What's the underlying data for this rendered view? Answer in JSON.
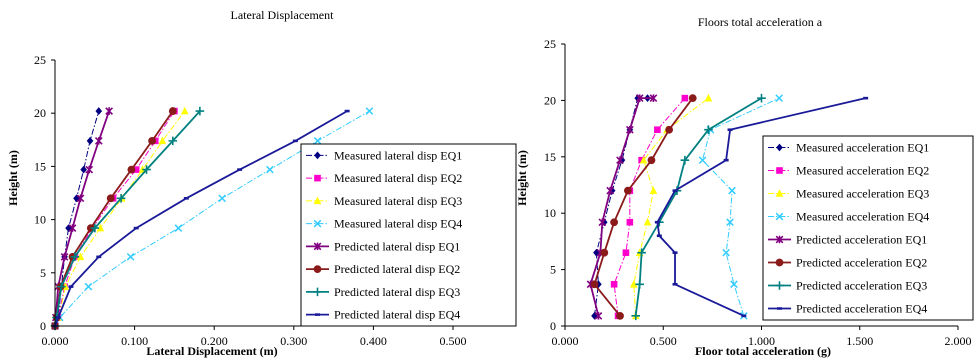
{
  "chart_data": [
    {
      "type": "line",
      "title": "Lateral Displacement",
      "xlabel": "Lateral Displacement (m)",
      "ylabel": "Height (m)",
      "xlim": [
        0,
        0.5
      ],
      "ylim": [
        0,
        25
      ],
      "xticks": [
        "0.000",
        "0.100",
        "0.200",
        "0.300",
        "0.400",
        "0.500"
      ],
      "yticks": [
        "0",
        "5",
        "10",
        "15",
        "20",
        "25"
      ],
      "grid": false,
      "legend_position": "right",
      "series": [
        {
          "name": "Measured lateral disp EQ1",
          "color": "#000080",
          "marker": "diamond",
          "dash": "dashdot",
          "x": [
            0.0,
            0.004,
            0.008,
            0.012,
            0.017,
            0.027,
            0.036,
            0.044,
            0.055
          ],
          "y": [
            0,
            0.8,
            3.7,
            6.5,
            9.2,
            12.0,
            14.7,
            17.4,
            20.2
          ]
        },
        {
          "name": "Measured lateral disp EQ2",
          "color": "#ff00cc",
          "marker": "square",
          "dash": "dashdot",
          "x": [
            0.0,
            0.004,
            0.012,
            0.025,
            0.047,
            0.073,
            0.102,
            0.126,
            0.15
          ],
          "y": [
            0,
            0.8,
            3.7,
            6.5,
            9.2,
            12.0,
            14.7,
            17.4,
            20.2
          ]
        },
        {
          "name": "Measured lateral disp EQ3",
          "color": "#ffff00",
          "marker": "triangle",
          "dash": "dashdot",
          "x": [
            0.0,
            0.005,
            0.013,
            0.032,
            0.057,
            0.084,
            0.11,
            0.135,
            0.163
          ],
          "y": [
            0,
            0.8,
            3.7,
            6.5,
            9.2,
            12.0,
            14.7,
            17.4,
            20.2
          ]
        },
        {
          "name": "Measured lateral disp EQ4",
          "color": "#33ccff",
          "marker": "x",
          "dash": "dashdot",
          "x": [
            0.0,
            0.006,
            0.042,
            0.095,
            0.155,
            0.21,
            0.27,
            0.33,
            0.395
          ],
          "y": [
            0,
            0.8,
            3.7,
            6.5,
            9.2,
            12.0,
            14.7,
            17.4,
            20.2
          ]
        },
        {
          "name": "Predicted lateral disp EQ1",
          "color": "#800080",
          "marker": "star",
          "dash": "solid",
          "x": [
            0.0,
            0.001,
            0.004,
            0.012,
            0.022,
            0.032,
            0.043,
            0.055,
            0.068
          ],
          "y": [
            0,
            0.8,
            3.7,
            6.5,
            9.2,
            12.0,
            14.7,
            17.4,
            20.2
          ]
        },
        {
          "name": "Predicted lateral disp EQ2",
          "color": "#8b1a1a",
          "marker": "circle",
          "dash": "solid",
          "x": [
            0.0,
            0.002,
            0.007,
            0.022,
            0.045,
            0.07,
            0.096,
            0.122,
            0.148
          ],
          "y": [
            0,
            0.8,
            3.7,
            6.5,
            9.2,
            12.0,
            14.7,
            17.4,
            20.2
          ]
        },
        {
          "name": "Predicted lateral disp EQ3",
          "color": "#008080",
          "marker": "plus",
          "dash": "solid",
          "x": [
            0.0,
            0.002,
            0.008,
            0.025,
            0.05,
            0.083,
            0.115,
            0.148,
            0.182
          ],
          "y": [
            0,
            0.8,
            3.7,
            6.5,
            9.2,
            12.0,
            14.7,
            17.4,
            20.2
          ]
        },
        {
          "name": "Predicted lateral disp EQ4",
          "color": "#1a1a99",
          "marker": "dash",
          "dash": "solid",
          "x": [
            0.0,
            0.004,
            0.02,
            0.055,
            0.102,
            0.165,
            0.232,
            0.302,
            0.367
          ],
          "y": [
            0,
            0.8,
            3.7,
            6.5,
            9.2,
            12.0,
            14.7,
            17.4,
            20.2
          ]
        }
      ]
    },
    {
      "type": "line",
      "title": "Floors total acceleration a",
      "xlabel": "Floor total acceleration (g)",
      "ylabel": "Height (m)",
      "xlim": [
        0,
        2
      ],
      "ylim": [
        0,
        25
      ],
      "xticks": [
        "0.000",
        "0.500",
        "1.000",
        "1.500",
        "2.000"
      ],
      "yticks": [
        "0",
        "5",
        "10",
        "15",
        "20",
        "25"
      ],
      "grid": false,
      "legend_position": "right",
      "series": [
        {
          "name": "Measured acceleration EQ1",
          "color": "#000080",
          "marker": "diamond",
          "dash": "dashdot",
          "x": [
            0.15,
            0.17,
            0.16,
            0.2,
            0.24,
            0.29,
            0.33,
            0.37,
            0.42
          ],
          "y": [
            0.9,
            3.7,
            6.5,
            9.2,
            12.0,
            14.7,
            17.4,
            20.2,
            20.2
          ]
        },
        {
          "name": "Measured acceleration EQ2",
          "color": "#ff00cc",
          "marker": "square",
          "dash": "dashdot",
          "x": [
            0.27,
            0.25,
            0.31,
            0.33,
            0.33,
            0.39,
            0.47,
            0.61
          ],
          "y": [
            0.9,
            3.7,
            6.5,
            9.2,
            12.0,
            14.7,
            17.4,
            20.2
          ]
        },
        {
          "name": "Measured acceleration EQ3",
          "color": "#ffff00",
          "marker": "triangle",
          "dash": "dashdot",
          "x": [
            0.36,
            0.35,
            0.38,
            0.42,
            0.45,
            0.4,
            0.52,
            0.73
          ],
          "y": [
            0.9,
            3.7,
            6.5,
            9.2,
            12.0,
            14.7,
            17.4,
            20.2
          ]
        },
        {
          "name": "Measured acceleration EQ4",
          "color": "#33ccff",
          "marker": "x",
          "dash": "dashdot",
          "x": [
            0.91,
            0.86,
            0.82,
            0.84,
            0.85,
            0.7,
            0.74,
            1.09
          ],
          "y": [
            0.9,
            3.7,
            6.5,
            9.2,
            12.0,
            14.7,
            17.4,
            20.2
          ]
        },
        {
          "name": "Predicted acceleration EQ1",
          "color": "#800080",
          "marker": "star",
          "dash": "solid",
          "x": [
            0.17,
            0.13,
            0.18,
            0.19,
            0.23,
            0.28,
            0.33,
            0.38,
            0.45
          ],
          "y": [
            0.9,
            3.7,
            6.5,
            9.2,
            12.0,
            14.7,
            17.4,
            20.2,
            20.2
          ]
        },
        {
          "name": "Predicted acceleration EQ2",
          "color": "#8b1a1a",
          "marker": "circle",
          "dash": "solid",
          "x": [
            0.28,
            0.15,
            0.2,
            0.25,
            0.32,
            0.44,
            0.53,
            0.65
          ],
          "y": [
            0.9,
            3.7,
            6.5,
            9.2,
            12.0,
            14.7,
            17.4,
            20.2
          ]
        },
        {
          "name": "Predicted acceleration EQ3",
          "color": "#008080",
          "marker": "plus",
          "dash": "solid",
          "x": [
            0.36,
            0.38,
            0.39,
            0.48,
            0.57,
            0.61,
            0.73,
            1.0
          ],
          "y": [
            0.9,
            3.7,
            6.5,
            9.2,
            12.0,
            14.7,
            17.4,
            20.2
          ]
        },
        {
          "name": "Predicted acceleration EQ4",
          "color": "#1a1a99",
          "marker": "dash",
          "dash": "solid",
          "x": [
            0.91,
            0.56,
            0.56,
            0.48,
            0.47,
            0.56,
            0.82,
            0.84,
            1.53
          ],
          "y": [
            0.9,
            3.7,
            6.5,
            8.0,
            9.2,
            12.0,
            14.7,
            17.4,
            20.2
          ]
        }
      ]
    }
  ]
}
